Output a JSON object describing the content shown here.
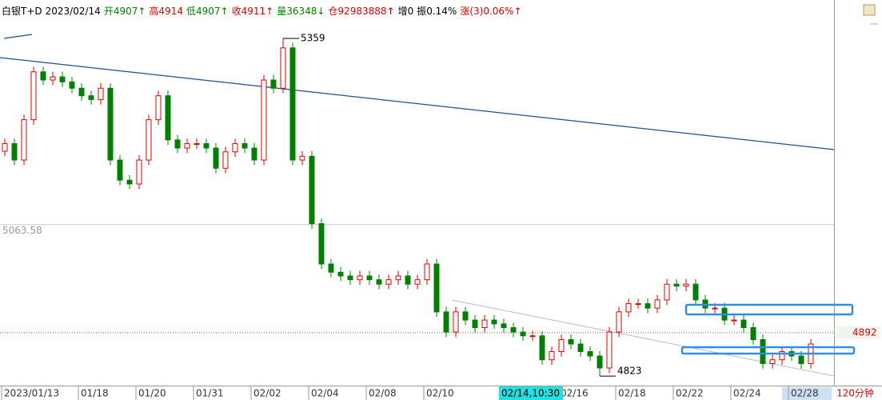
{
  "header": {
    "items": [
      {
        "text": "白银T+D",
        "color": "#000000"
      },
      {
        "text": "2023/02/14",
        "color": "#000000"
      },
      {
        "text": "开4907↑",
        "color": "#008000"
      },
      {
        "text": "高4914",
        "color": "#e00000"
      },
      {
        "text": "低4907↑",
        "color": "#008000"
      },
      {
        "text": "收4911↑",
        "color": "#e00000"
      },
      {
        "text": "量36348↓",
        "color": "#008000"
      },
      {
        "text": "仓92983888↑",
        "color": "#e00000"
      },
      {
        "text": "增0",
        "color": "#000000"
      },
      {
        "text": "振0.14%",
        "color": "#000000"
      },
      {
        "text": "涨(3)0.06%↑",
        "color": "#e00000"
      }
    ]
  },
  "chart_data": {
    "type": "candlestick",
    "categories": [
      "2023/01/13",
      null,
      null,
      null,
      null,
      null,
      null,
      null,
      "01/18",
      null,
      null,
      null,
      null,
      null,
      "01/20",
      null,
      null,
      null,
      null,
      null,
      "01/31",
      null,
      null,
      null,
      null,
      null,
      "02/02",
      null,
      null,
      null,
      null,
      null,
      "02/04",
      null,
      null,
      null,
      null,
      null,
      "02/08",
      null,
      null,
      null,
      null,
      null,
      "02/10",
      null,
      null,
      null,
      null,
      null,
      null,
      null,
      null,
      null,
      null,
      null,
      null,
      null,
      "02/16",
      null,
      null,
      null,
      null,
      null,
      "02/18",
      null,
      null,
      null,
      null,
      null,
      "02/22",
      null,
      null,
      null,
      null,
      null,
      "02/24",
      null,
      null,
      null,
      null,
      null,
      "02/28",
      null,
      null
    ],
    "series": [
      {
        "up_color": "#e00000",
        "down_color": "#008000",
        "open": [
          5180,
          5192,
          5166,
          5230,
          5306,
          5293,
          5298,
          5290,
          5280,
          5268,
          5262,
          5280,
          5166,
          5134,
          5128,
          5166,
          5230,
          5268,
          5198,
          5185,
          5192,
          5192,
          5185,
          5153,
          5179,
          5192,
          5185,
          5166,
          5293,
          5280,
          5344,
          5166,
          5172,
          5065,
          5001,
          4988,
          4982,
          4976,
          4982,
          4976,
          4969,
          4976,
          4982,
          4969,
          4976,
          5001,
          4925,
          4893,
          4925,
          4912,
          4900,
          4912,
          4906,
          4900,
          4893,
          4887,
          4887,
          4849,
          4862,
          4881,
          4874,
          4862,
          4855,
          4836,
          4893,
          4925,
          4938,
          4938,
          4931,
          4944,
          4969,
          4966,
          4969,
          4944,
          4931,
          4931,
          4912,
          4912,
          4900,
          4881,
          4843,
          4849,
          4862,
          4855,
          4843
        ],
        "high": [
          5200,
          5200,
          5238,
          5314,
          5314,
          5306,
          5306,
          5298,
          5288,
          5276,
          5288,
          5288,
          5174,
          5142,
          5174,
          5238,
          5276,
          5276,
          5206,
          5200,
          5200,
          5200,
          5193,
          5187,
          5200,
          5200,
          5193,
          5301,
          5301,
          5359,
          5352,
          5180,
          5180,
          5073,
          5009,
          4996,
          4990,
          4990,
          4990,
          4984,
          4984,
          4990,
          4990,
          4984,
          5009,
          5009,
          4933,
          4933,
          4933,
          4920,
          4920,
          4920,
          4914,
          4908,
          4901,
          4895,
          4895,
          4870,
          4889,
          4889,
          4882,
          4870,
          4863,
          4901,
          4933,
          4946,
          4946,
          4946,
          4952,
          4977,
          4977,
          4977,
          4977,
          4952,
          4939,
          4939,
          4920,
          4920,
          4908,
          4889,
          4857,
          4870,
          4870,
          4863,
          4882
        ],
        "low": [
          5172,
          5158,
          5158,
          5222,
          5285,
          5285,
          5282,
          5272,
          5260,
          5254,
          5254,
          5158,
          5126,
          5120,
          5120,
          5158,
          5222,
          5190,
          5177,
          5177,
          5184,
          5177,
          5145,
          5145,
          5171,
          5177,
          5158,
          5158,
          5272,
          5272,
          5158,
          5158,
          5057,
          4993,
          4980,
          4974,
          4968,
          4968,
          4968,
          4961,
          4961,
          4968,
          4961,
          4961,
          4968,
          4917,
          4885,
          4885,
          4904,
          4892,
          4892,
          4898,
          4892,
          4885,
          4879,
          4879,
          4841,
          4841,
          4854,
          4866,
          4854,
          4847,
          4823,
          4828,
          4885,
          4917,
          4930,
          4923,
          4923,
          4936,
          4958,
          4958,
          4936,
          4923,
          4923,
          4904,
          4904,
          4892,
          4873,
          4835,
          4835,
          4841,
          4847,
          4835,
          4835
        ],
        "close": [
          5192,
          5166,
          5230,
          5306,
          5293,
          5298,
          5290,
          5280,
          5268,
          5262,
          5280,
          5166,
          5134,
          5128,
          5166,
          5230,
          5268,
          5198,
          5185,
          5192,
          5192,
          5185,
          5153,
          5179,
          5192,
          5185,
          5166,
          5293,
          5280,
          5344,
          5166,
          5172,
          5065,
          5001,
          4988,
          4982,
          4976,
          4982,
          4976,
          4969,
          4976,
          4982,
          4969,
          4976,
          5001,
          4925,
          4893,
          4925,
          4912,
          4900,
          4912,
          4906,
          4900,
          4893,
          4887,
          4887,
          4849,
          4862,
          4881,
          4874,
          4862,
          4855,
          4836,
          4893,
          4925,
          4938,
          4938,
          4931,
          4944,
          4969,
          4966,
          4969,
          4944,
          4931,
          4931,
          4912,
          4912,
          4900,
          4881,
          4843,
          4849,
          4862,
          4855,
          4843,
          4874
        ]
      }
    ],
    "ylim": [
      4808,
      5420
    ],
    "reference_line": 5063.58,
    "last_price": 4892,
    "cursor_label": "02/14,10:30",
    "period": "120分钟"
  }
}
